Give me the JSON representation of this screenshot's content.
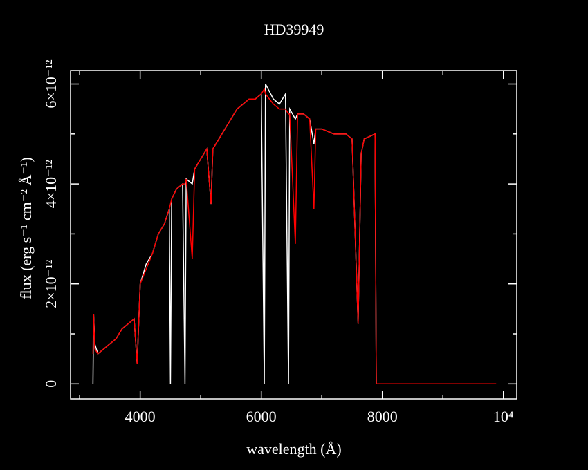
{
  "chart_data": {
    "type": "line",
    "title": "HD39949",
    "xlabel": "wavelength (Å)",
    "ylabel": "flux (erg s⁻¹ cm⁻² Å⁻¹)",
    "x": [
      3220,
      3230,
      3250,
      3300,
      3400,
      3500,
      3600,
      3700,
      3800,
      3900,
      3950,
      4000,
      4100,
      4200,
      4300,
      4400,
      4480,
      4500,
      4520,
      4600,
      4700,
      4740,
      4760,
      4860,
      4900,
      5000,
      5100,
      5170,
      5200,
      5300,
      5400,
      5500,
      5600,
      5700,
      5800,
      5900,
      6000,
      6050,
      6070,
      6200,
      6300,
      6400,
      6450,
      6470,
      6563,
      6600,
      6700,
      6800,
      6870,
      6900,
      7000,
      7200,
      7400,
      7500,
      7600,
      7650,
      7700,
      7880,
      7900,
      9880
    ],
    "series": [
      {
        "color": "#ffffff",
        "values": [
          0,
          1.4e-12,
          8e-13,
          6e-13,
          7e-13,
          8e-13,
          9e-13,
          1.1e-12,
          1.2e-12,
          1.3e-12,
          4e-13,
          2e-12,
          2.4e-12,
          2.6e-12,
          3e-12,
          3.2e-12,
          3.5e-12,
          0,
          3.7e-12,
          3.9e-12,
          4e-12,
          0,
          4.1e-12,
          4e-12,
          4.3e-12,
          4.5e-12,
          4.7e-12,
          3.6e-12,
          4.7e-12,
          4.9e-12,
          5.1e-12,
          5.3e-12,
          5.5e-12,
          5.6e-12,
          5.7e-12,
          5.7e-12,
          5.8e-12,
          0,
          6e-12,
          5.7e-12,
          5.6e-12,
          5.8e-12,
          0,
          5.5e-12,
          5.3e-12,
          5.4e-12,
          5.4e-12,
          5.3e-12,
          4.8e-12,
          5.1e-12,
          5.1e-12,
          5e-12,
          5e-12,
          4.9e-12,
          1.2e-12,
          4.6e-12,
          4.9e-12,
          5e-12,
          0,
          null
        ]
      },
      {
        "color": "#ff0000",
        "values": [
          6e-13,
          1.4e-12,
          7e-13,
          6e-13,
          7e-13,
          8e-13,
          9e-13,
          1.1e-12,
          1.2e-12,
          1.3e-12,
          4e-13,
          2e-12,
          2.3e-12,
          2.6e-12,
          3e-12,
          3.2e-12,
          3.5e-12,
          3.6e-12,
          3.7e-12,
          3.9e-12,
          4e-12,
          4e-12,
          4.1e-12,
          2.5e-12,
          4.3e-12,
          4.5e-12,
          4.7e-12,
          3.6e-12,
          4.7e-12,
          4.9e-12,
          5.1e-12,
          5.3e-12,
          5.5e-12,
          5.6e-12,
          5.7e-12,
          5.7e-12,
          5.8e-12,
          5.9e-12,
          5.8e-12,
          5.6e-12,
          5.5e-12,
          5.5e-12,
          5.4e-12,
          5.4e-12,
          2.8e-12,
          5.4e-12,
          5.4e-12,
          5.3e-12,
          3.5e-12,
          5.1e-12,
          5.1e-12,
          5e-12,
          5e-12,
          4.9e-12,
          1.2e-12,
          4.6e-12,
          4.9e-12,
          5e-12,
          0,
          0
        ]
      }
    ],
    "xlim": [
      2850,
      10220
    ],
    "ylim": [
      -3e-13,
      6.27e-12
    ],
    "xticks": [
      4000,
      6000,
      8000,
      {
        "value": 10000,
        "label": "10⁴"
      }
    ],
    "xminorticks": [
      3000,
      5000,
      7000,
      9000
    ],
    "yticks": [
      0,
      {
        "value": 2e-12,
        "label": "2×10⁻¹²"
      },
      {
        "value": 4e-12,
        "label": "4×10⁻¹²"
      },
      {
        "value": 6e-12,
        "label": "6×10⁻¹²"
      }
    ],
    "yminorticks": [
      1e-12,
      3e-12,
      5e-12
    ],
    "axis_color": "#ffffff"
  }
}
